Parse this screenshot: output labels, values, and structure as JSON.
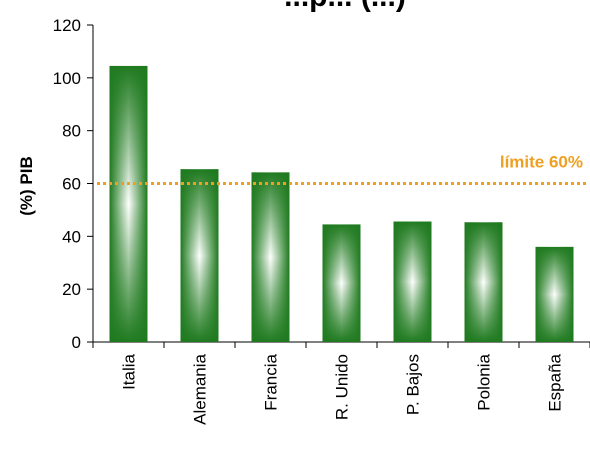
{
  "chart_data": {
    "type": "bar",
    "title": "...p... (...)",
    "ylabel": "(%) PIB",
    "xlabel": "",
    "categories": [
      "Italia",
      "Alemania",
      "Francia",
      "R. Unido",
      "P. Bajos",
      "Polonia",
      "España"
    ],
    "values": [
      104.5,
      65.4,
      64.2,
      44.5,
      45.6,
      45.3,
      36.0
    ],
    "ylim": [
      0,
      120
    ],
    "yticks": [
      "0",
      "20",
      "40",
      "60",
      "80",
      "100",
      "120"
    ],
    "grid": false,
    "legend": "none",
    "reference_line": {
      "value": 60,
      "label": "límite 60%",
      "color": "#f0a020",
      "style": "dotted"
    },
    "bar_color": "#1f7a1f"
  }
}
